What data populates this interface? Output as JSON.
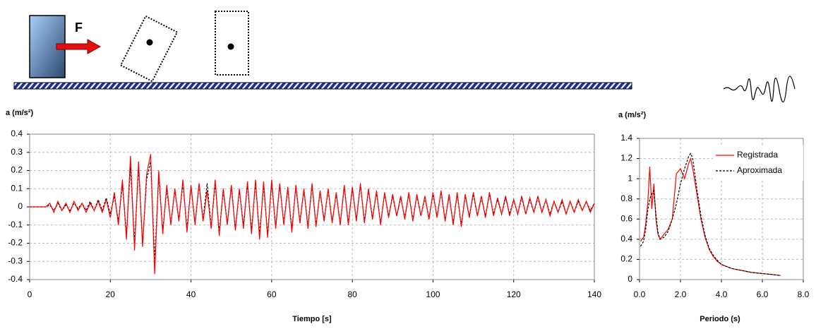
{
  "diagram": {
    "force_label": "F"
  },
  "chart_data": [
    {
      "type": "line",
      "y_label": "a (m/s²)",
      "x_label": "Tiempo [s]",
      "xlim": [
        0,
        140
      ],
      "xticks": [
        0,
        20,
        40,
        60,
        80,
        100,
        120,
        140
      ],
      "ylim": [
        -0.4,
        0.4
      ],
      "yticks": [
        -0.4,
        -0.3,
        -0.2,
        -0.1,
        0,
        0.1,
        0.2,
        0.3,
        0.4
      ],
      "grid": true,
      "x": [
        0,
        1,
        2,
        3,
        4,
        5,
        6,
        7,
        8,
        9,
        10,
        11,
        12,
        13,
        14,
        15,
        16,
        17,
        18,
        19,
        20,
        21,
        22,
        23,
        24,
        25,
        26,
        27,
        28,
        29,
        30,
        31,
        32,
        33,
        34,
        35,
        36,
        37,
        38,
        39,
        40,
        41,
        42,
        43,
        44,
        45,
        46,
        47,
        48,
        49,
        50,
        51,
        52,
        53,
        54,
        55,
        56,
        57,
        58,
        59,
        60,
        61,
        62,
        63,
        64,
        65,
        66,
        67,
        68,
        69,
        70,
        71,
        72,
        73,
        74,
        75,
        76,
        77,
        78,
        79,
        80,
        81,
        82,
        83,
        84,
        85,
        86,
        87,
        88,
        89,
        90,
        91,
        92,
        93,
        94,
        95,
        96,
        97,
        98,
        99,
        100,
        101,
        102,
        103,
        104,
        105,
        106,
        107,
        108,
        109,
        110,
        111,
        112,
        113,
        114,
        115,
        116,
        117,
        118,
        119,
        120,
        121,
        122,
        123,
        124,
        125,
        126,
        127,
        128,
        129,
        130,
        131,
        132,
        133,
        134,
        135,
        136,
        137,
        138,
        139,
        140
      ],
      "series": [
        {
          "color": "#000000",
          "line_style": "dashed",
          "values": [
            0,
            0,
            0,
            0,
            0,
            0.01,
            -0.02,
            0.02,
            -0.02,
            0.01,
            -0.02,
            0.02,
            -0.01,
            0.02,
            -0.02,
            0.03,
            -0.02,
            0.04,
            -0.02,
            0.05,
            -0.04,
            0.06,
            -0.08,
            0.12,
            -0.15,
            0.22,
            -0.2,
            0.22,
            -0.2,
            0.15,
            0.25,
            -0.3,
            0.17,
            -0.13,
            0.1,
            -0.09,
            0.09,
            -0.07,
            0.13,
            -0.12,
            0.11,
            -0.09,
            0.12,
            -0.07,
            0.13,
            -0.11,
            0.13,
            -0.14,
            0.09,
            -0.09,
            0.11,
            -0.12,
            0.09,
            -0.1,
            0.12,
            -0.13,
            0.13,
            -0.15,
            0.12,
            -0.15,
            0.13,
            -0.11,
            0.12,
            -0.09,
            0.1,
            -0.12,
            0.11,
            -0.08,
            0.09,
            -0.11,
            0.12,
            -0.1,
            0.08,
            -0.07,
            0.09,
            -0.08,
            0.07,
            -0.09,
            0.11,
            -0.09,
            0.1,
            -0.07,
            0.12,
            -0.08,
            0.09,
            -0.06,
            0.08,
            -0.09,
            0.07,
            -0.05,
            0.06,
            -0.05,
            0.05,
            -0.06,
            0.07,
            -0.07,
            0.06,
            -0.05,
            0.05,
            -0.06,
            0.07,
            -0.05,
            0.08,
            -0.07,
            0.06,
            -0.09,
            0.07,
            -0.1,
            0.06,
            -0.05,
            0.07,
            -0.05,
            0.05,
            -0.05,
            0.07,
            -0.04,
            0.04,
            -0.04,
            0.05,
            -0.04,
            0.04,
            -0.04,
            0.05,
            -0.04,
            0.04,
            -0.03,
            0.05,
            -0.03,
            0.04,
            -0.04,
            0.03,
            -0.03,
            0.03,
            -0.04,
            0.03,
            -0.03,
            0.03,
            -0.02,
            0.03,
            -0.02,
            0.02
          ]
        },
        {
          "color": "#ff0000",
          "line_style": "solid",
          "values": [
            0,
            0,
            0,
            0,
            0,
            0.02,
            -0.03,
            0.03,
            -0.02,
            0.02,
            -0.03,
            0.03,
            -0.02,
            0.02,
            -0.03,
            0.02,
            -0.02,
            0.03,
            -0.03,
            0.04,
            -0.06,
            0.08,
            -0.1,
            0.15,
            -0.18,
            0.28,
            -0.24,
            0.25,
            -0.22,
            0.18,
            0.29,
            -0.37,
            0.2,
            -0.15,
            0.12,
            -0.1,
            0.1,
            -0.08,
            0.15,
            -0.14,
            0.12,
            -0.1,
            0.13,
            -0.08,
            0.09,
            -0.12,
            0.15,
            -0.16,
            0.1,
            -0.1,
            0.12,
            -0.13,
            0.1,
            -0.12,
            0.14,
            -0.15,
            0.15,
            -0.18,
            0.14,
            -0.17,
            0.15,
            -0.12,
            0.13,
            -0.1,
            0.11,
            -0.14,
            0.12,
            -0.09,
            0.1,
            -0.12,
            0.13,
            -0.11,
            0.09,
            -0.08,
            0.1,
            -0.09,
            0.08,
            -0.1,
            0.12,
            -0.1,
            0.11,
            -0.08,
            0.13,
            -0.09,
            0.1,
            -0.07,
            0.09,
            -0.1,
            0.08,
            -0.06,
            0.07,
            -0.05,
            0.06,
            -0.07,
            0.08,
            -0.08,
            0.07,
            -0.05,
            0.06,
            -0.07,
            0.08,
            -0.06,
            0.09,
            -0.08,
            0.07,
            -0.1,
            0.08,
            -0.11,
            0.07,
            -0.06,
            0.08,
            -0.05,
            0.06,
            -0.06,
            0.08,
            -0.05,
            0.05,
            -0.04,
            0.06,
            -0.05,
            0.04,
            -0.04,
            0.06,
            -0.04,
            0.05,
            -0.03,
            0.06,
            -0.03,
            0.04,
            -0.05,
            0.03,
            -0.03,
            0.04,
            -0.04,
            0.03,
            -0.03,
            0.04,
            -0.02,
            0.03,
            -0.03,
            0.02
          ]
        }
      ]
    },
    {
      "type": "line",
      "y_label": "a (m/s²)",
      "x_label": "Periodo (s)",
      "xlim": [
        0,
        8
      ],
      "xticks": [
        {
          "value": 0,
          "label": "0.0"
        },
        {
          "value": 2,
          "label": "2.0"
        },
        {
          "value": 4,
          "label": "4.0"
        },
        {
          "value": 6,
          "label": "6.0"
        },
        {
          "value": 8,
          "label": "8.0"
        }
      ],
      "ylim": [
        0,
        1.4
      ],
      "yticks": [
        0,
        0.2,
        0.4,
        0.6,
        0.8,
        1,
        1.2,
        1.4
      ],
      "grid": true,
      "legend": "top-right",
      "x": [
        0.05,
        0.2,
        0.3,
        0.4,
        0.5,
        0.6,
        0.7,
        0.8,
        0.9,
        1.0,
        1.2,
        1.4,
        1.6,
        1.8,
        2.0,
        2.2,
        2.4,
        2.5,
        2.6,
        2.8,
        3.0,
        3.2,
        3.4,
        3.6,
        3.8,
        4.0,
        4.5,
        5.0,
        5.5,
        6.0,
        6.5,
        6.9
      ],
      "series": [
        {
          "name": "Registrada",
          "color": "#ff0000",
          "line_style": "solid",
          "values": [
            0.38,
            0.42,
            0.55,
            0.75,
            1.12,
            0.7,
            0.95,
            0.6,
            0.45,
            0.4,
            0.45,
            0.5,
            0.6,
            1.05,
            1.1,
            1.0,
            1.15,
            1.2,
            1.1,
            0.85,
            0.6,
            0.42,
            0.3,
            0.23,
            0.18,
            0.15,
            0.11,
            0.09,
            0.07,
            0.06,
            0.05,
            0.04
          ]
        },
        {
          "name": "Aproximada",
          "color": "#000000",
          "line_style": "dashed",
          "values": [
            0.33,
            0.38,
            0.5,
            0.68,
            0.8,
            0.85,
            0.88,
            0.65,
            0.47,
            0.4,
            0.42,
            0.48,
            0.6,
            0.75,
            0.95,
            1.1,
            1.22,
            1.25,
            1.2,
            0.9,
            0.63,
            0.44,
            0.31,
            0.24,
            0.19,
            0.15,
            0.11,
            0.09,
            0.07,
            0.06,
            0.05,
            0.04
          ]
        }
      ]
    }
  ]
}
